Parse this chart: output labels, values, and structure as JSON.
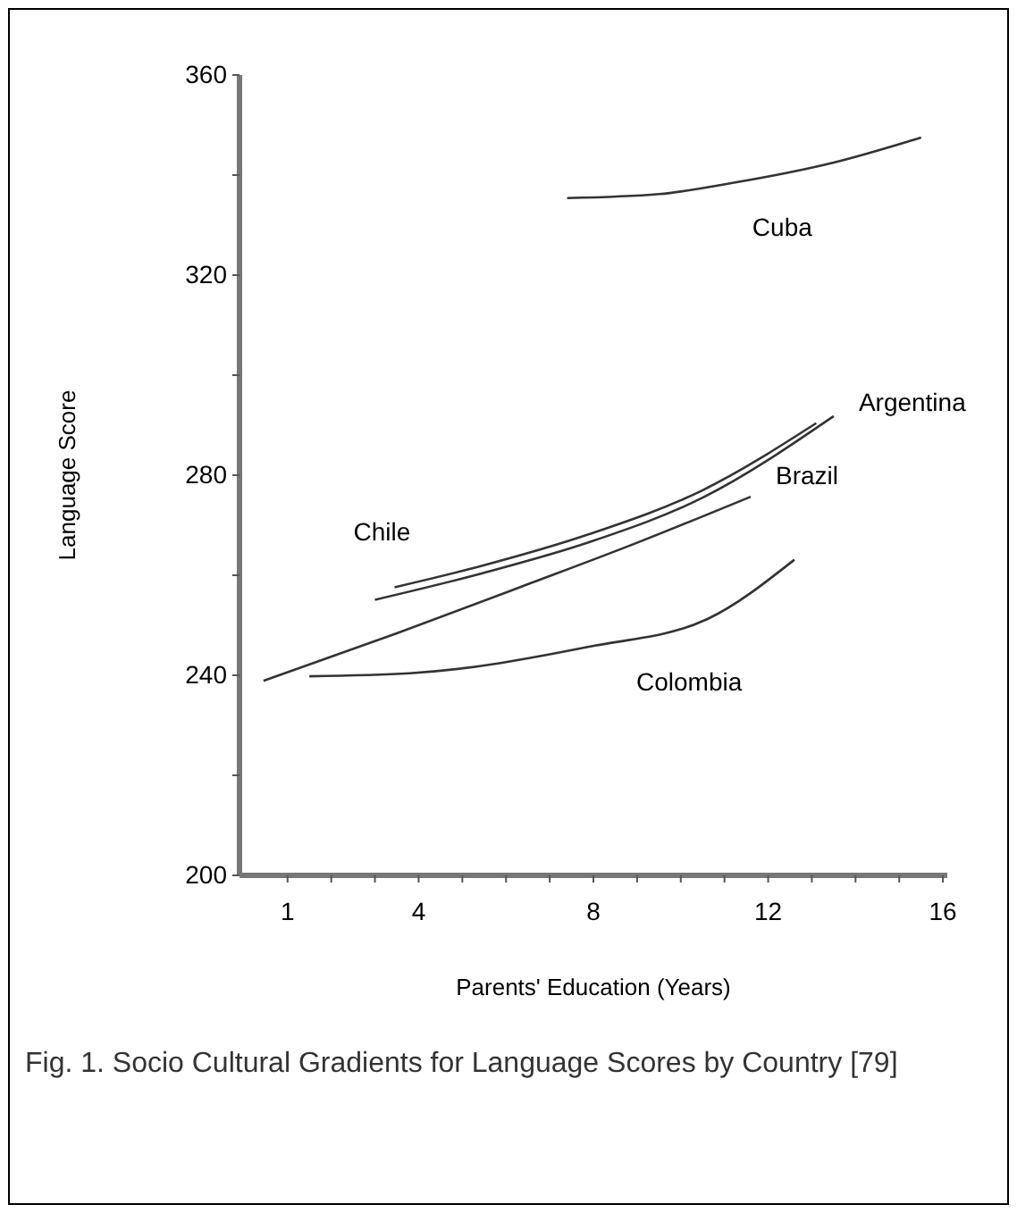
{
  "chart_data": {
    "type": "line",
    "xlabel": "Parents' Education (Years)",
    "ylabel": "Language Score",
    "annotations": [
      "Fig. 1.  Socio Cultural Gradients for Language Scores by Country [79]"
    ],
    "xlim": [
      -0.1,
      16.1
    ],
    "ylim": [
      200,
      360
    ],
    "xticks": [
      1,
      {
        "value": 2,
        "label": null
      },
      {
        "value": 3,
        "label": null
      },
      4,
      {
        "value": 5,
        "label": null
      },
      {
        "value": 6,
        "label": null
      },
      {
        "value": 7,
        "label": null
      },
      8,
      {
        "value": 9,
        "label": null
      },
      {
        "value": 10,
        "label": null
      },
      {
        "value": 11,
        "label": null
      },
      12,
      {
        "value": 13,
        "label": null
      },
      {
        "value": 14,
        "label": null
      },
      {
        "value": 15,
        "label": null
      },
      16
    ],
    "yticks": [
      200,
      {
        "value": 220,
        "label": null
      },
      240,
      {
        "value": 260,
        "label": null
      },
      280,
      {
        "value": 300,
        "label": null
      },
      320,
      {
        "value": 340,
        "label": null
      },
      360
    ],
    "grid": false,
    "legend": false,
    "marker": "none",
    "line_style": "solid",
    "series": [
      {
        "name": "Cuba",
        "color": "#333333",
        "x": [
          7.4,
          9.5,
          11.3,
          13.5,
          15.5
        ],
        "values": [
          335.4,
          336.2,
          338.6,
          342.5,
          347.5
        ]
      },
      {
        "name": "Chile",
        "color": "#333333",
        "x": [
          3.45,
          5.5,
          7.9,
          10.5,
          13.1
        ],
        "values": [
          257.6,
          262,
          268.2,
          277,
          290.4
        ]
      },
      {
        "name": "Argentina",
        "color": "#333333",
        "x": [
          3.0,
          5.5,
          7.9,
          10.5,
          13.5
        ],
        "values": [
          255.1,
          260.5,
          266.6,
          275.5,
          291.8
        ]
      },
      {
        "name": "Brazil",
        "color": "#333333",
        "x": [
          0.45,
          3.5,
          6.5,
          9.0,
          11.6
        ],
        "values": [
          238.9,
          248.4,
          258.2,
          266.5,
          275.7
        ]
      },
      {
        "name": "Colombia",
        "color": "#333333",
        "x": [
          1.5,
          3.8,
          7.9,
          10.6,
          12.6
        ],
        "values": [
          239.8,
          240.4,
          245.7,
          251.2,
          263.1
        ]
      }
    ]
  }
}
